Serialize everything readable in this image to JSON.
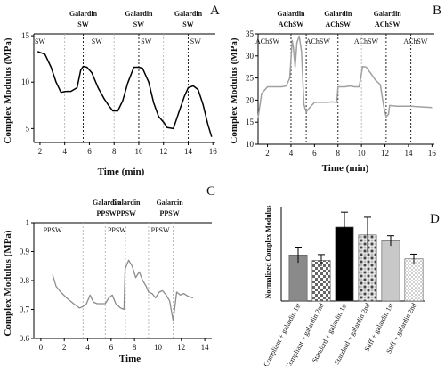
{
  "colors": {
    "line_a": "#000000",
    "line_b": "#a0a0a0",
    "line_c": "#8c8c8c",
    "bar_compliant": "#8a8a8a",
    "bar_standard": "#000000",
    "bar_stiff": "#c8c8c8",
    "error_bar": "#000000"
  },
  "chart_data": [
    {
      "panel": "A",
      "type": "line",
      "xlabel": "Time (min)",
      "ylabel": "Complex Modulus (MPa)",
      "xlim": [
        1.5,
        16.2
      ],
      "ylim": [
        3.5,
        15.2
      ],
      "xticks": [
        2,
        4,
        6,
        8,
        10,
        12,
        14,
        16
      ],
      "yticks": [
        5,
        10,
        15
      ],
      "grid": false,
      "annotations": [
        {
          "x": 5.5,
          "line1": "Galardin",
          "line2": "SW"
        },
        {
          "x": 10.0,
          "line1": "Galardin",
          "line2": "SW"
        },
        {
          "x": 14.0,
          "line1": "Galardin",
          "line2": "SW"
        }
      ],
      "segment_labels": [
        {
          "x": 2.0,
          "text": "SW"
        },
        {
          "x": 6.6,
          "text": "SW"
        },
        {
          "x": 10.6,
          "text": "SW"
        },
        {
          "x": 14.6,
          "text": "SW"
        }
      ],
      "dashed_lines": [
        {
          "x": 4.0,
          "style": "light"
        },
        {
          "x": 5.5,
          "style": "dark"
        },
        {
          "x": 8.0,
          "style": "light"
        },
        {
          "x": 10.0,
          "style": "dark"
        },
        {
          "x": 12.0,
          "style": "light"
        },
        {
          "x": 14.0,
          "style": "dark"
        }
      ],
      "series": [
        {
          "x": [
            1.8,
            2.4,
            2.9,
            3.3,
            3.7,
            4.1,
            4.5,
            5.0,
            5.3,
            5.5,
            5.8,
            6.2,
            6.7,
            7.2,
            7.6,
            7.9,
            8.3,
            8.7,
            9.1,
            9.6,
            10.0,
            10.3,
            10.8,
            11.2,
            11.6,
            12.0,
            12.3,
            12.8,
            13.2,
            13.7,
            14.0,
            14.4,
            14.8,
            15.2,
            15.6,
            15.9
          ],
          "y": [
            13.3,
            13.0,
            11.6,
            10.0,
            8.9,
            9.0,
            9.0,
            9.4,
            11.3,
            11.7,
            11.6,
            11.0,
            9.4,
            8.2,
            7.4,
            6.9,
            6.9,
            8.0,
            9.9,
            11.6,
            11.6,
            11.5,
            10.0,
            7.8,
            6.3,
            5.7,
            5.1,
            5.0,
            6.6,
            8.5,
            9.4,
            9.6,
            9.2,
            7.6,
            5.4,
            4.1
          ]
        }
      ]
    },
    {
      "panel": "B",
      "type": "line",
      "xlabel": "Time (min)",
      "ylabel": "Complex Modulus (MPa)",
      "xlim": [
        1.2,
        16.2
      ],
      "ylim": [
        10,
        35
      ],
      "xticks": [
        2,
        4,
        6,
        8,
        10,
        12,
        14,
        16
      ],
      "yticks": [
        10,
        15,
        20,
        25,
        30,
        35
      ],
      "grid": false,
      "annotations": [
        {
          "x": 4.0,
          "line1": "Galardin",
          "line2": "AChSW"
        },
        {
          "x": 8.0,
          "line1": "Galardin",
          "line2": "AChSW"
        },
        {
          "x": 12.2,
          "line1": "Galardin",
          "line2": "AChSW"
        }
      ],
      "segment_labels": [
        {
          "x": 2.0,
          "text": "AChSW"
        },
        {
          "x": 6.3,
          "text": "AChSW"
        },
        {
          "x": 10.4,
          "text": "AChSW"
        },
        {
          "x": 14.6,
          "text": "AChSW"
        }
      ],
      "dashed_lines": [
        {
          "x": 4.0,
          "style": "dark"
        },
        {
          "x": 5.3,
          "style": "dark"
        },
        {
          "x": 8.0,
          "style": "dark"
        },
        {
          "x": 10.0,
          "style": "light"
        },
        {
          "x": 12.1,
          "style": "dark"
        },
        {
          "x": 14.2,
          "style": "dark"
        }
      ],
      "series": [
        {
          "x": [
            1.2,
            1.5,
            2.0,
            2.6,
            3.2,
            3.6,
            3.9,
            4.1,
            4.2,
            4.35,
            4.5,
            4.7,
            4.9,
            5.1,
            5.3,
            5.5,
            6.0,
            6.5,
            7.0,
            7.5,
            7.9,
            8.0,
            8.3,
            8.6,
            9.0,
            9.4,
            9.8,
            10.1,
            10.4,
            10.8,
            11.2,
            11.6,
            11.9,
            12.1,
            12.3,
            12.4,
            13.0,
            13.5,
            14.2,
            14.8,
            15.4,
            16.0
          ],
          "y": [
            16.0,
            21.5,
            23.0,
            23.0,
            23.0,
            23.2,
            25.0,
            33.5,
            32.0,
            27.5,
            33.0,
            34.5,
            31.0,
            19.0,
            17.3,
            18.0,
            19.5,
            19.5,
            19.5,
            19.6,
            19.5,
            23.0,
            23.0,
            23.0,
            23.2,
            23.0,
            23.0,
            27.6,
            27.5,
            26.0,
            24.5,
            23.5,
            18.5,
            16.2,
            16.8,
            18.8,
            18.6,
            18.6,
            18.6,
            18.5,
            18.4,
            18.3
          ]
        }
      ]
    },
    {
      "panel": "C",
      "type": "line",
      "xlabel": "Time",
      "ylabel": "Complex Modulus (MPa)",
      "xlim": [
        -0.6,
        14.6
      ],
      "ylim": [
        0.6,
        1.0
      ],
      "xticks": [
        0,
        2,
        4,
        6,
        8,
        10,
        12,
        14
      ],
      "yticks": [
        0.6,
        0.7,
        0.8,
        0.9,
        1.0
      ],
      "grid": false,
      "annotations": [
        {
          "x": 5.6,
          "line1": "Galardin",
          "line2": "PPSW"
        },
        {
          "x": 7.3,
          "line1": "Galardin",
          "line2": "PPSW"
        },
        {
          "x": 11.0,
          "line1": "Galarcin",
          "line2": "PPSW"
        }
      ],
      "segment_labels": [
        {
          "x": 1.0,
          "text": "PPSW"
        },
        {
          "x": 6.5,
          "text": "PPSW"
        },
        {
          "x": 10.2,
          "text": "PPSW"
        }
      ],
      "dashed_lines": [
        {
          "x": 3.6,
          "style": "light"
        },
        {
          "x": 5.5,
          "style": "light"
        },
        {
          "x": 7.2,
          "style": "dark"
        },
        {
          "x": 9.2,
          "style": "light"
        },
        {
          "x": 11.3,
          "style": "light"
        }
      ],
      "series": [
        {
          "x": [
            1.0,
            1.3,
            1.7,
            2.2,
            2.8,
            3.3,
            3.6,
            3.9,
            4.2,
            4.5,
            4.8,
            5.2,
            5.5,
            5.8,
            6.1,
            6.4,
            6.8,
            7.1,
            7.2,
            7.5,
            7.8,
            8.1,
            8.4,
            8.7,
            9.0,
            9.2,
            9.5,
            9.8,
            10.1,
            10.4,
            10.7,
            11.0,
            11.3,
            11.6,
            11.9,
            12.2,
            12.6,
            13.0
          ],
          "y": [
            0.82,
            0.78,
            0.76,
            0.74,
            0.72,
            0.705,
            0.71,
            0.72,
            0.75,
            0.725,
            0.72,
            0.72,
            0.72,
            0.74,
            0.75,
            0.72,
            0.705,
            0.7,
            0.84,
            0.87,
            0.85,
            0.81,
            0.83,
            0.8,
            0.78,
            0.76,
            0.755,
            0.74,
            0.76,
            0.765,
            0.75,
            0.73,
            0.66,
            0.76,
            0.75,
            0.755,
            0.745,
            0.74
          ]
        }
      ]
    },
    {
      "panel": "D",
      "type": "bar",
      "ylabel": "Normalized Complex Modulus",
      "categories": [
        "Compliant + galardin 1st",
        "Compliant + galardin 2nd",
        "Standard + galardin 1st",
        "Standard + galardin 2nd",
        "Stiff + galardin 1st",
        "Stiff + galardin 2nd"
      ],
      "values": [
        1.17,
        1.03,
        1.88,
        1.68,
        1.53,
        1.07
      ],
      "errors": [
        0.2,
        0.15,
        0.38,
        0.45,
        0.13,
        0.12
      ],
      "fills": [
        "solid-gray",
        "checker-gray",
        "solid-black",
        "checker-black",
        "solid-lightgray",
        "dotted-lightgray"
      ],
      "ylim": [
        0,
        2.4
      ],
      "grid": false
    }
  ]
}
